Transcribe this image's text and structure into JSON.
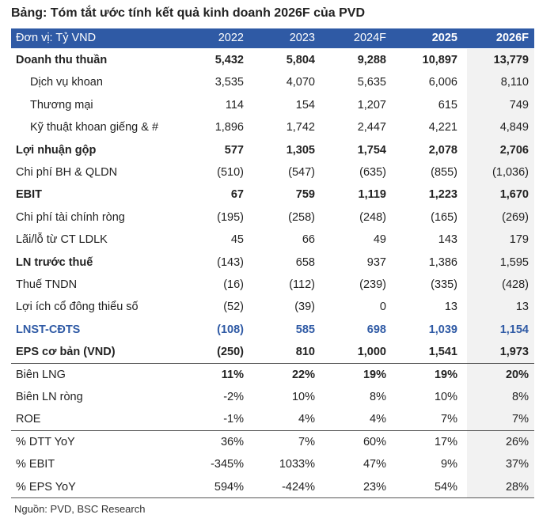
{
  "title": "Bảng: Tóm tắt ước tính kết quả kinh doanh 2026F của PVD",
  "table": {
    "header": [
      "Đơn vị: Tỷ VND",
      "2022",
      "2023",
      "2024F",
      "2025",
      "2026F"
    ],
    "rows": [
      [
        "Doanh thu thuần",
        "5,432",
        "5,804",
        "9,288",
        "10,897",
        "13,779"
      ],
      [
        "Dịch vụ khoan",
        "3,535",
        "4,070",
        "5,635",
        "6,006",
        "8,110"
      ],
      [
        "Thương mại",
        "114",
        "154",
        "1,207",
        "615",
        "749"
      ],
      [
        "Kỹ thuật khoan giếng & #",
        "1,896",
        "1,742",
        "2,447",
        "4,221",
        "4,849"
      ],
      [
        "Lợi nhuận gộp",
        "577",
        "1,305",
        "1,754",
        "2,078",
        "2,706"
      ],
      [
        "Chi phí BH & QLDN",
        "(510)",
        "(547)",
        "(635)",
        "(855)",
        "(1,036)"
      ],
      [
        "EBIT",
        "67",
        "759",
        "1,119",
        "1,223",
        "1,670"
      ],
      [
        "Chi phí tài chính ròng",
        "(195)",
        "(258)",
        "(248)",
        "(165)",
        "(269)"
      ],
      [
        "Lãi/lỗ từ CT LDLK",
        "45",
        "66",
        "49",
        "143",
        "179"
      ],
      [
        "LN trước thuế",
        "(143)",
        "658",
        "937",
        "1,386",
        "1,595"
      ],
      [
        "Thuế TNDN",
        "(16)",
        "(112)",
        "(239)",
        "(335)",
        "(428)"
      ],
      [
        "Lợi ích cổ đông thiểu số",
        "(52)",
        "(39)",
        "0",
        "13",
        "13"
      ],
      [
        "LNST-CĐTS",
        "(108)",
        "585",
        "698",
        "1,039",
        "1,154"
      ],
      [
        "EPS cơ bản (VND)",
        "(250)",
        "810",
        "1,000",
        "1,541",
        "1,973"
      ],
      [
        "Biên LNG",
        "11%",
        "22%",
        "19%",
        "19%",
        "20%"
      ],
      [
        "Biên LN ròng",
        "-2%",
        "10%",
        "8%",
        "10%",
        "8%"
      ],
      [
        "ROE",
        "-1%",
        "4%",
        "4%",
        "7%",
        "7%"
      ],
      [
        "% DTT YoY",
        "36%",
        "7%",
        "60%",
        "17%",
        "26%"
      ],
      [
        "% EBIT",
        "-345%",
        "1033%",
        "47%",
        "9%",
        "37%"
      ],
      [
        "% EPS YoY",
        "594%",
        "-424%",
        "23%",
        "54%",
        "28%"
      ]
    ]
  },
  "source": "Nguồn: PVD, BSC Research"
}
